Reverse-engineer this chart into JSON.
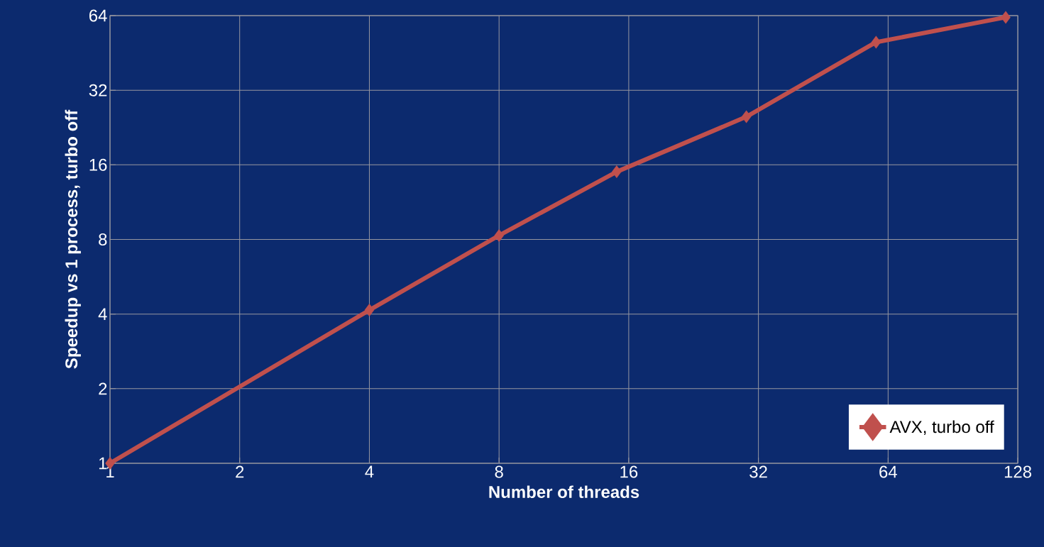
{
  "chart_data": {
    "type": "line",
    "xlabel": "Number of threads",
    "ylabel": "Speedup vs 1 process, turbo off",
    "x": [
      1,
      4,
      8,
      15,
      30,
      60,
      120
    ],
    "series": [
      {
        "name": "AVX, turbo off",
        "color": "#c0504d",
        "values": [
          1,
          4.15,
          8.3,
          15,
          25,
          50,
          63
        ]
      }
    ],
    "log": "xy",
    "xlim": [
      1,
      128
    ],
    "ylim": [
      1,
      64
    ],
    "xticks": [
      1,
      2,
      4,
      8,
      16,
      32,
      64,
      128
    ],
    "yticks": [
      1,
      2,
      4,
      8,
      16,
      32,
      64
    ],
    "grid": true,
    "legend": "bottom right",
    "marker": "diamond",
    "line_style": "solid"
  }
}
